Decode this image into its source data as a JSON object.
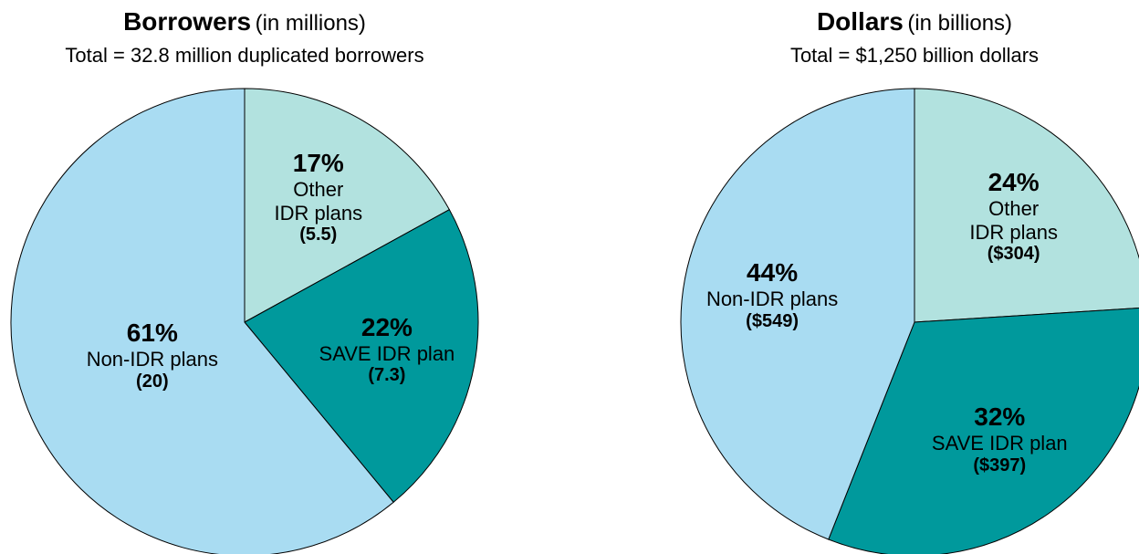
{
  "chart_data": [
    {
      "type": "pie",
      "title": "Borrowers",
      "title_note": "(in millions)",
      "subtitle": "Total = 32.8 million duplicated borrowers",
      "categories": [
        "Other\nIDR plans",
        "SAVE IDR plan",
        "Non-IDR plans"
      ],
      "values": [
        17,
        22,
        61
      ],
      "value_labels": [
        "17%",
        "22%",
        "61%"
      ],
      "amount_labels": [
        "(5.5)",
        "(7.3)",
        "(20)"
      ],
      "colors": [
        "#b2e2df",
        "#00999c",
        "#a9dcf2"
      ]
    },
    {
      "type": "pie",
      "title": "Dollars",
      "title_note": "(in billions)",
      "subtitle": "Total = $1,250 billion dollars",
      "categories": [
        "Other\nIDR plans",
        "SAVE IDR plan",
        "Non-IDR plans"
      ],
      "values": [
        24,
        32,
        44
      ],
      "value_labels": [
        "24%",
        "32%",
        "44%"
      ],
      "amount_labels": [
        "($304)",
        "($397)",
        "($549)"
      ],
      "colors": [
        "#b2e2df",
        "#00999c",
        "#a9dcf2"
      ]
    }
  ]
}
